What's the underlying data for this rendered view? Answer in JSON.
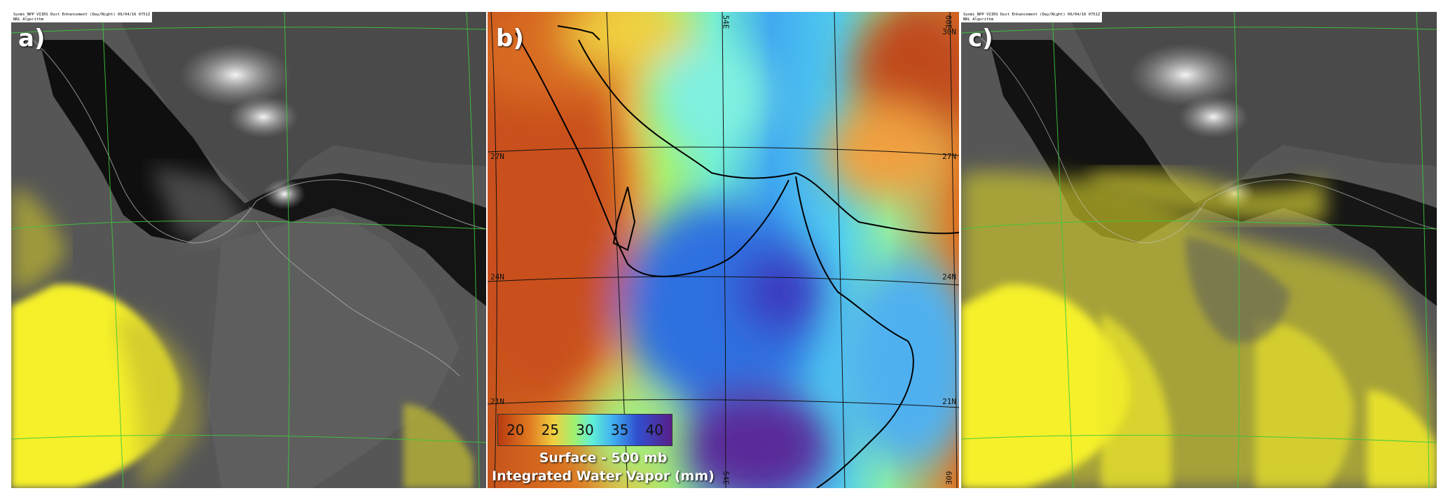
{
  "panels": [
    {
      "letter": "a)",
      "tag_line1": "Suomi_NPP VIIRS Dust Enhancement (Day/Night) 06/04/16 0751Z",
      "tag_line2": "NRL Algorithm"
    },
    {
      "letter": "b)",
      "lat_labels": [
        "27N",
        "24N",
        "21N"
      ],
      "lon_labels": [
        "54E",
        "60E"
      ],
      "corner_labels": [
        "30N"
      ],
      "legend": {
        "ticks": [
          "20",
          "25",
          "30",
          "35",
          "40"
        ],
        "title_line1": "Surface - 500 mb",
        "title_line2": "Integrated Water Vapor (mm)"
      }
    },
    {
      "letter": "c)",
      "tag_line1": "Suomi_NPP VIIRS Dust Enhancement (Day/Night) 06/04/16 0751Z",
      "tag_line2": "NRL Algorithm"
    }
  ],
  "colors": {
    "dust_yellow": "#f5f02a",
    "grid_green": "#3cc83c",
    "ocean_dark": "#0b0b0b",
    "land_gray": "#5a5a5a",
    "wv_low": "#b83a10",
    "wv_mid": "#6cf0c0",
    "wv_high": "#5a1f8a"
  }
}
